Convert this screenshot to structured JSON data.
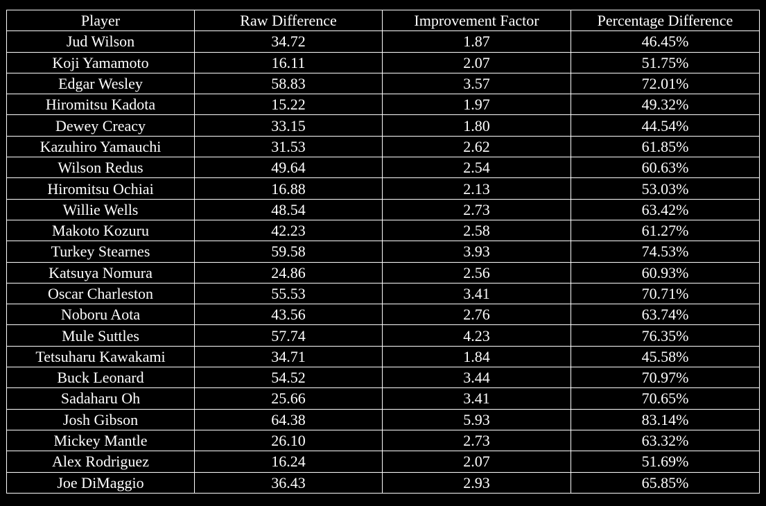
{
  "chart_data": {
    "type": "table",
    "columns": [
      "Player",
      "Raw Difference",
      "Improvement Factor",
      "Percentage Difference"
    ],
    "rows": [
      [
        "Jud Wilson",
        "34.72",
        "1.87",
        "46.45%"
      ],
      [
        "Koji Yamamoto",
        "16.11",
        "2.07",
        "51.75%"
      ],
      [
        "Edgar Wesley",
        "58.83",
        "3.57",
        "72.01%"
      ],
      [
        "Hiromitsu Kadota",
        "15.22",
        "1.97",
        "49.32%"
      ],
      [
        "Dewey Creacy",
        "33.15",
        "1.80",
        "44.54%"
      ],
      [
        "Kazuhiro Yamauchi",
        "31.53",
        "2.62",
        "61.85%"
      ],
      [
        "Wilson Redus",
        "49.64",
        "2.54",
        "60.63%"
      ],
      [
        "Hiromitsu Ochiai",
        "16.88",
        "2.13",
        "53.03%"
      ],
      [
        "Willie Wells",
        "48.54",
        "2.73",
        "63.42%"
      ],
      [
        "Makoto Kozuru",
        "42.23",
        "2.58",
        "61.27%"
      ],
      [
        "Turkey Stearnes",
        "59.58",
        "3.93",
        "74.53%"
      ],
      [
        "Katsuya Nomura",
        "24.86",
        "2.56",
        "60.93%"
      ],
      [
        "Oscar Charleston",
        "55.53",
        "3.41",
        "70.71%"
      ],
      [
        "Noboru Aota",
        "43.56",
        "2.76",
        "63.74%"
      ],
      [
        "Mule Suttles",
        "57.74",
        "4.23",
        "76.35%"
      ],
      [
        "Tetsuharu Kawakami",
        "34.71",
        "1.84",
        "45.58%"
      ],
      [
        "Buck Leonard",
        "54.52",
        "3.44",
        "70.97%"
      ],
      [
        "Sadaharu Oh",
        "25.66",
        "3.41",
        "70.65%"
      ],
      [
        "Josh Gibson",
        "64.38",
        "5.93",
        "83.14%"
      ],
      [
        "Mickey Mantle",
        "26.10",
        "2.73",
        "63.32%"
      ],
      [
        "Alex Rodriguez",
        "16.24",
        "2.07",
        "51.69%"
      ],
      [
        "Joe DiMaggio",
        "36.43",
        "2.93",
        "65.85%"
      ]
    ]
  },
  "colors": {
    "background": "#000000",
    "text": "#ffffff",
    "border": "#ffffff"
  }
}
